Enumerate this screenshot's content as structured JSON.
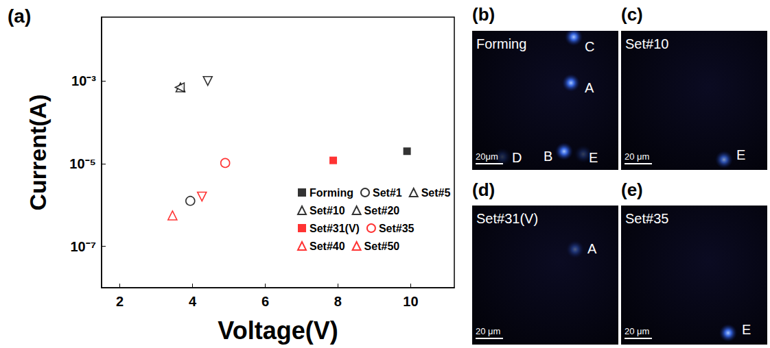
{
  "chart_data": {
    "type": "scatter",
    "title": "(a)",
    "x_label": "Voltage(V)",
    "y_label": "Current(A)",
    "log": "y",
    "grid": false,
    "legend": "lower right",
    "xlim": [
      1.5,
      11.2
    ],
    "xticks": [
      2,
      4,
      6,
      8,
      10
    ],
    "ylim": [
      1e-08,
      0.035
    ],
    "yticks": [
      {
        "value": 0.001,
        "label": "10⁻³"
      },
      {
        "value": 1e-05,
        "label": "10⁻⁵"
      },
      {
        "value": 1e-07,
        "label": "10⁻⁷"
      }
    ],
    "series": [
      {
        "name": "Forming",
        "color": "#000000",
        "marker": "square-filled",
        "x": [
          9.9
        ],
        "values": [
          2e-05
        ]
      },
      {
        "name": "Set#1",
        "color": "#000000",
        "marker": "circle-open",
        "x": [
          3.94
        ],
        "values": [
          1.26e-06
        ]
      },
      {
        "name": "Set#5",
        "color": "#000000",
        "marker": "triangle-up-open",
        "x": [
          3.67
        ],
        "values": [
          0.0007
        ]
      },
      {
        "name": "Set#10",
        "color": "#000000",
        "marker": "triangle-down-open",
        "x": [
          4.42
        ],
        "values": [
          0.001
        ]
      },
      {
        "name": "Set#20",
        "color": "#000000",
        "marker": "triangle-left-open",
        "x": [
          3.65
        ],
        "values": [
          0.0007
        ]
      },
      {
        "name": "Set#31(V)",
        "color": "#ff0000",
        "marker": "square-filled",
        "x": [
          7.87
        ],
        "values": [
          1.2e-05
        ]
      },
      {
        "name": "Set#35",
        "color": "#ff0000",
        "marker": "circle-open",
        "x": [
          4.9
        ],
        "values": [
          1.04e-05
        ]
      },
      {
        "name": "Set#40",
        "color": "#ff0000",
        "marker": "triangle-up-open",
        "x": [
          3.45
        ],
        "values": [
          5.6e-07
        ]
      },
      {
        "name": "Set#50",
        "color": "#ff0000",
        "marker": "triangle-down-open",
        "x": [
          4.26
        ],
        "values": [
          1.6e-06
        ]
      }
    ]
  },
  "image_panels": [
    {
      "letter": "(b)",
      "title": "Forming",
      "scale_bar": "20μm",
      "spots": [
        "C",
        "A",
        "D",
        "B",
        "E"
      ]
    },
    {
      "letter": "(c)",
      "title": "Set#10",
      "scale_bar": "20 μm",
      "spots": [
        "E"
      ]
    },
    {
      "letter": "(d)",
      "title": "Set#31(V)",
      "scale_bar": "20 μm",
      "spots": [
        "A"
      ]
    },
    {
      "letter": "(e)",
      "title": "Set#35",
      "scale_bar": "20 μm",
      "spots": [
        "E"
      ]
    }
  ]
}
